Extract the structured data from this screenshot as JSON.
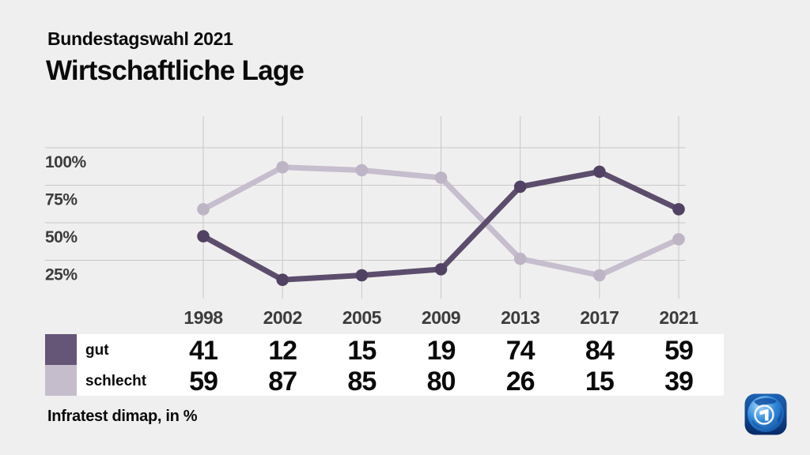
{
  "header": {
    "kicker": "Bundestagswahl 2021",
    "title": "Wirtschaftliche Lage"
  },
  "footer": {
    "source": "Infratest dimap, in %"
  },
  "logo": {
    "icon": "ard-tagesschau-globe"
  },
  "colors": {
    "background": "#f0efef",
    "grid": "#c9c7c8",
    "table_background": "#ffffff",
    "axis_text": "#3c3c3c",
    "value_text": "#0a0a0a"
  },
  "chart_data": {
    "type": "line",
    "title": "Wirtschaftliche Lage",
    "subtitle": "Bundestagswahl 2021",
    "unit": "%",
    "categories": [
      "1998",
      "2002",
      "2005",
      "2009",
      "2013",
      "2017",
      "2021"
    ],
    "series": [
      {
        "name": "gut",
        "values": [
          41,
          12,
          15,
          19,
          74,
          84,
          59
        ],
        "color": "#5c4d6d",
        "marker_color": "#514263",
        "swatch_color": "#655577"
      },
      {
        "name": "schlecht",
        "values": [
          59,
          87,
          85,
          80,
          26,
          15,
          39
        ],
        "color": "#c6bdce",
        "marker_color": "#bdb4c5",
        "swatch_color": "#c5bdcb"
      }
    ],
    "y_ticks": [
      {
        "label": "100%",
        "value": 100
      },
      {
        "label": "75%",
        "value": 75
      },
      {
        "label": "50%",
        "value": 50
      },
      {
        "label": "25%",
        "value": 25
      }
    ],
    "ylim": [
      0,
      120
    ],
    "grid": true,
    "legend_position": "bottom-table"
  }
}
